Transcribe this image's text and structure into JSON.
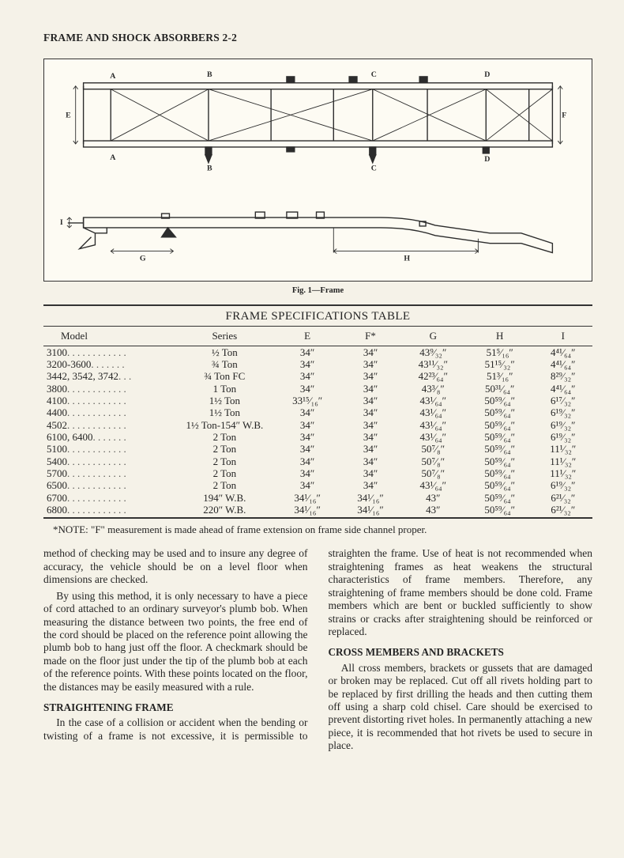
{
  "header": "FRAME AND SHOCK ABSORBERS 2-2",
  "figure": {
    "caption": "Fig. 1—Frame",
    "top_labels": [
      "A",
      "B",
      "C",
      "D",
      "E",
      "F",
      "A",
      "B",
      "C",
      "D"
    ],
    "side_labels": [
      "G",
      "H",
      "I"
    ],
    "stroke_color": "#2c2c2c",
    "bg": "#fdfbf3",
    "line_width": 1.4
  },
  "table": {
    "title": "FRAME SPECIFICATIONS TABLE",
    "columns": [
      "Model",
      "Series",
      "E",
      "F*",
      "G",
      "H",
      "I"
    ],
    "col_widths": [
      "24%",
      "18%",
      "11%",
      "11%",
      "13%",
      "13%",
      "10%"
    ],
    "rows": [
      {
        "model": "3100",
        "dots": ". . . . . . . . . . . .",
        "series": "½ Ton",
        "E": "34″",
        "F": "34″",
        "G": "43⁹⁄₃₂″",
        "H": "51⁵⁄₁₆″",
        "I": "4⁴¹⁄₆₄″"
      },
      {
        "model": "3200-3600",
        "dots": ". . . . . . .",
        "series": "¾ Ton",
        "E": "34″",
        "F": "34″",
        "G": "43¹¹⁄₃₂″",
        "H": "51¹⁵⁄₃₂″",
        "I": "4⁴¹⁄₆₄″"
      },
      {
        "model": "3442, 3542, 3742",
        "dots": ". . .",
        "series": "¾ Ton FC",
        "E": "34″",
        "F": "34″",
        "G": "42²³⁄₆₄″",
        "H": "51³⁄₁₆″",
        "I": "8²⁹⁄₃₂″"
      },
      {
        "model": "3800",
        "dots": ". . . . . . . . . . . .",
        "series": "1 Ton",
        "E": "34″",
        "F": "34″",
        "G": "43³⁄₈″",
        "H": "50³¹⁄₆₄″",
        "I": "4⁴¹⁄₆₄″"
      },
      {
        "model": "4100",
        "dots": ". . . . . . . . . . . .",
        "series": "1½ Ton",
        "E": "33¹⁵⁄₁₆″",
        "F": "34″",
        "G": "43¹⁄₆₄″",
        "H": "50⁵⁹⁄₆₄″",
        "I": "6¹⁷⁄₃₂″"
      },
      {
        "model": "4400",
        "dots": ". . . . . . . . . . . .",
        "series": "1½ Ton",
        "E": "34″",
        "F": "34″",
        "G": "43¹⁄₆₄″",
        "H": "50⁵⁹⁄₆₄″",
        "I": "6¹⁹⁄₃₂″"
      },
      {
        "model": "4502",
        "dots": ". . . . . . . . . . . .",
        "series": "1½ Ton-154″ W.B.",
        "E": "34″",
        "F": "34″",
        "G": "43¹⁄₆₄″",
        "H": "50⁵⁹⁄₆₄″",
        "I": "6¹⁹⁄₃₂″"
      },
      {
        "model": "6100, 6400",
        "dots": ". . . . . . .",
        "series": "2 Ton",
        "E": "34″",
        "F": "34″",
        "G": "43¹⁄₆₄″",
        "H": "50⁵⁹⁄₆₄″",
        "I": "6¹⁹⁄₃₂″"
      },
      {
        "model": "5100",
        "dots": ". . . . . . . . . . . .",
        "series": "2 Ton",
        "E": "34″",
        "F": "34″",
        "G": "50⁷⁄₈″",
        "H": "50⁵⁹⁄₆₄″",
        "I": "11¹⁄₃₂″"
      },
      {
        "model": "5400",
        "dots": ". . . . . . . . . . . .",
        "series": "2 Ton",
        "E": "34″",
        "F": "34″",
        "G": "50⁷⁄₈″",
        "H": "50⁵⁹⁄₆₄″",
        "I": "11¹⁄₃₂″"
      },
      {
        "model": "5700",
        "dots": ". . . . . . . . . . . .",
        "series": "2 Ton",
        "E": "34″",
        "F": "34″",
        "G": "50⁷⁄₈″",
        "H": "50⁵⁹⁄₆₄″",
        "I": "11¹⁄₃₂″"
      },
      {
        "model": "6500",
        "dots": ". . . . . . . . . . . .",
        "series": "2 Ton",
        "E": "34″",
        "F": "34″",
        "G": "43¹⁄₆₄″",
        "H": "50⁵⁹⁄₆₄″",
        "I": "6¹⁹⁄₃₂″"
      },
      {
        "model": "6700",
        "dots": ". . . . . . . . . . . .",
        "series": "194″ W.B.",
        "E": "34¹⁄₁₆″",
        "F": "34¹⁄₁₆″",
        "G": "43″",
        "H": "50⁵⁹⁄₆₄″",
        "I": "6²¹⁄₃₂″"
      },
      {
        "model": "6800",
        "dots": ". . . . . . . . . . . .",
        "series": "220″ W.B.",
        "E": "34¹⁄₁₆″",
        "F": "34¹⁄₁₆″",
        "G": "43″",
        "H": "50⁵⁹⁄₆₄″",
        "I": "6²¹⁄₃₂″"
      }
    ]
  },
  "note": "*NOTE: \"F\" measurement is made ahead of frame extension on frame side channel proper.",
  "body": {
    "p1": "method of checking may be used and to insure any degree of accuracy, the vehicle should be on a level floor when dimensions are checked.",
    "p2": "By using this method, it is only necessary to have a piece of cord attached to an ordinary surveyor's plumb bob. When measuring the distance between two points, the free end of the cord should be placed on the reference point allowing the plumb bob to hang just off the floor. A checkmark should be made on the floor just under the tip of the plumb bob at each of the reference points. With these points located on the floor, the distances may be easily measured with a rule.",
    "h1": "STRAIGHTENING FRAME",
    "p3": "In the case of a collision or accident when the bending or twisting of a frame is not excessive, it is permissible to straighten the frame. Use of heat is not recommended when straightening frames as heat weakens the structural characteristics of frame members. Therefore, any straightening of frame members should be done cold. Frame members which are bent or buckled sufficiently to show strains or cracks after straightening should be reinforced or replaced.",
    "h2": "CROSS MEMBERS AND BRACKETS",
    "p4": "All cross members, brackets or gussets that are damaged or broken may be replaced. Cut off all rivets holding part to be replaced by first drilling the heads and then cutting them off using a sharp cold chisel. Care should be exercised to prevent distorting rivet holes. In permanently attaching a new piece, it is recommended that hot rivets be used to secure in place."
  }
}
